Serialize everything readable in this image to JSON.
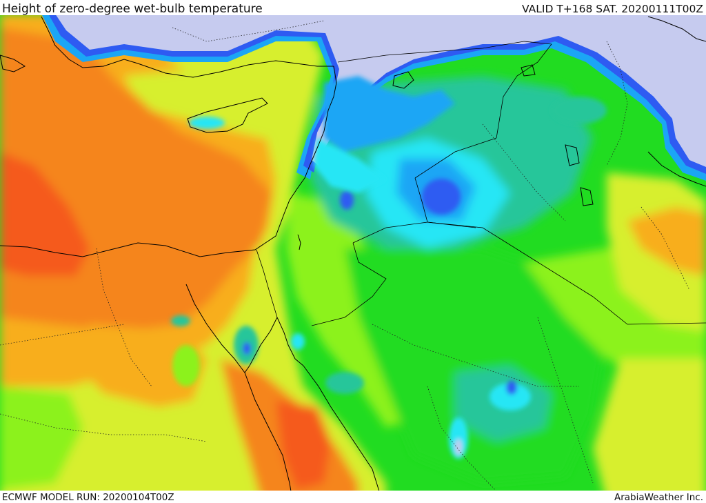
{
  "header": {
    "title": "Height of zero-degree wet-bulb temperature",
    "valid": "VALID T+168 SAT. 20200111T00Z"
  },
  "footer": {
    "model_run": "ECMWF MODEL RUN: 20200104T00Z",
    "credit": "ArabiaWeather Inc."
  },
  "colors": {
    "lavender": "#c6cbef",
    "blue": "#2e5bf2",
    "light_blue": "#1ba6f5",
    "cyan": "#26e6f5",
    "teal": "#26c69a",
    "green": "#21dc21",
    "lime": "#8cf21a",
    "yellow_green": "#d7ef2e",
    "yellow": "#f5d523",
    "orange": "#f8ae1c",
    "dark_orange": "#f5851c",
    "red_orange": "#f55a1e"
  }
}
